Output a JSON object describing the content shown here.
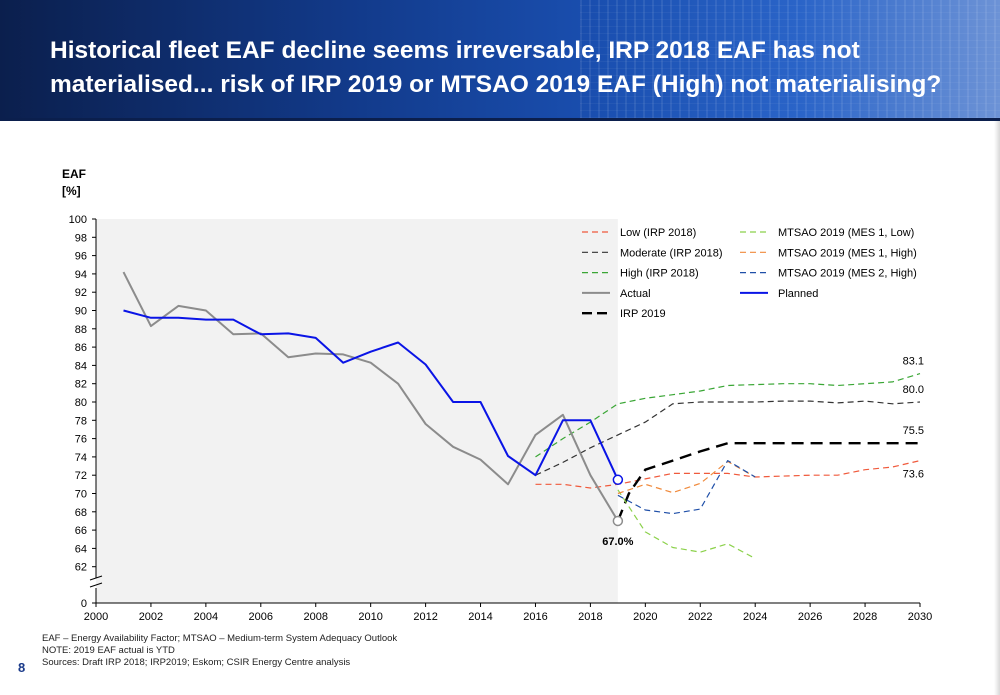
{
  "slide": {
    "title": "Historical fleet EAF decline seems irreversable, IRP 2018 EAF has not materialised... risk of IRP 2019 or MTSAO 2019 EAF (High) not materialising?",
    "page_number": "8",
    "footnotes": [
      "EAF – Energy Availability Factor; MTSAO – Medium-term System Adequacy Outlook",
      "NOTE: 2019 EAF actual is YTD",
      "Sources: Draft IRP 2018; IRP2019; Eskom; CSIR Energy Centre analysis"
    ]
  },
  "chart_data": {
    "type": "line",
    "ylabel_line1": "EAF",
    "ylabel_line2": "[%]",
    "xlim": [
      2000,
      2030
    ],
    "ylim": [
      60,
      100
    ],
    "y_axis_break": true,
    "y_ticks": [
      0,
      62,
      64,
      66,
      68,
      70,
      72,
      74,
      76,
      78,
      80,
      82,
      84,
      86,
      88,
      90,
      92,
      94,
      96,
      98,
      100
    ],
    "x_ticks": [
      2000,
      2002,
      2004,
      2006,
      2008,
      2010,
      2012,
      2014,
      2016,
      2018,
      2020,
      2022,
      2024,
      2026,
      2028,
      2030
    ],
    "historical_shading_to": 2019,
    "legend_position": "top-right",
    "series": [
      {
        "name": "Low (IRP 2018)",
        "color": "#f05a3c",
        "style": "dashed",
        "width": 1.2,
        "x": [
          2016,
          2017,
          2018,
          2019,
          2020,
          2021,
          2022,
          2023,
          2024,
          2025,
          2026,
          2027,
          2028,
          2029,
          2030
        ],
        "y": [
          71.0,
          71.0,
          70.6,
          71.0,
          71.6,
          72.2,
          72.2,
          72.2,
          71.8,
          71.9,
          72.0,
          72.0,
          72.6,
          72.9,
          73.6
        ]
      },
      {
        "name": "Moderate (IRP 2018)",
        "color": "#333333",
        "style": "dashed",
        "width": 1.2,
        "x": [
          2016,
          2017,
          2018,
          2019,
          2020,
          2021,
          2022,
          2023,
          2024,
          2025,
          2026,
          2027,
          2028,
          2029,
          2030
        ],
        "y": [
          72.0,
          73.4,
          75.0,
          76.4,
          77.8,
          79.8,
          80.0,
          80.0,
          80.0,
          80.1,
          80.1,
          79.9,
          80.1,
          79.8,
          80.0
        ]
      },
      {
        "name": "High (IRP 2018)",
        "color": "#3aa635",
        "style": "dashed",
        "width": 1.2,
        "x": [
          2016,
          2017,
          2018,
          2019,
          2020,
          2021,
          2022,
          2023,
          2024,
          2025,
          2026,
          2027,
          2028,
          2029,
          2030
        ],
        "y": [
          74.0,
          76.0,
          77.8,
          79.8,
          80.4,
          80.8,
          81.2,
          81.8,
          81.9,
          82.0,
          82.0,
          81.8,
          82.0,
          82.2,
          83.1
        ]
      },
      {
        "name": "Actual",
        "color": "#8c8c8c",
        "style": "solid",
        "width": 2,
        "x": [
          2001,
          2002,
          2003,
          2004,
          2005,
          2006,
          2007,
          2008,
          2009,
          2010,
          2011,
          2012,
          2013,
          2014,
          2015,
          2016,
          2017,
          2018,
          2019
        ],
        "y": [
          94.2,
          88.3,
          90.5,
          90.0,
          87.4,
          87.5,
          84.9,
          85.3,
          85.2,
          84.3,
          82.0,
          77.6,
          75.1,
          73.7,
          71.0,
          76.4,
          78.6,
          72.0,
          67.0
        ]
      },
      {
        "name": "IRP 2019",
        "color": "#000000",
        "style": "dashed-bold",
        "width": 2.4,
        "x": [
          2019,
          2019.4,
          2020,
          2021,
          2022,
          2023,
          2024,
          2025,
          2026,
          2027,
          2028,
          2029,
          2030
        ],
        "y": [
          67.0,
          70.0,
          72.6,
          73.6,
          74.6,
          75.5,
          75.5,
          75.5,
          75.5,
          75.5,
          75.5,
          75.5,
          75.5
        ]
      },
      {
        "name": "MTSAO 2019 (MES 1, Low)",
        "color": "#8bd14a",
        "style": "dashed",
        "width": 1.2,
        "x": [
          2019,
          2020,
          2021,
          2022,
          2023,
          2024
        ],
        "y": [
          70.4,
          65.8,
          64.1,
          63.6,
          64.5,
          62.9
        ]
      },
      {
        "name": "MTSAO 2019 (MES 1, High)",
        "color": "#f08a3c",
        "style": "dashed",
        "width": 1.2,
        "x": [
          2019,
          2020,
          2021,
          2022,
          2023,
          2024
        ],
        "y": [
          70.0,
          71.0,
          70.1,
          71.1,
          73.5,
          71.8
        ]
      },
      {
        "name": "MTSAO 2019 (MES 2, High)",
        "color": "#1f4fa8",
        "style": "dashed",
        "width": 1.2,
        "x": [
          2019,
          2020,
          2021,
          2022,
          2023,
          2024
        ],
        "y": [
          69.8,
          68.2,
          67.8,
          68.3,
          73.6,
          71.8
        ]
      },
      {
        "name": "Planned",
        "color": "#0a14e6",
        "style": "solid",
        "width": 2,
        "x": [
          2001,
          2002,
          2003,
          2004,
          2005,
          2006,
          2007,
          2008,
          2009,
          2010,
          2011,
          2012,
          2013,
          2014,
          2015,
          2016,
          2017,
          2018,
          2019
        ],
        "y": [
          90.0,
          89.2,
          89.2,
          89.0,
          89.0,
          87.4,
          87.5,
          87.0,
          84.3,
          85.5,
          86.5,
          84.1,
          80.0,
          80.0,
          74.1,
          72.0,
          78.0,
          78.0,
          71.5
        ]
      }
    ],
    "legend_left": [
      "Low (IRP 2018)",
      "Moderate (IRP 2018)",
      "High (IRP 2018)",
      "Actual",
      "IRP 2019"
    ],
    "legend_right": [
      "MTSAO 2019 (MES 1, Low)",
      "MTSAO 2019 (MES 1, High)",
      "MTSAO 2019 (MES 2, High)",
      "Planned"
    ],
    "annotations": [
      {
        "text": "83.1",
        "x": 2030,
        "y": 83.1
      },
      {
        "text": "80.0",
        "x": 2030,
        "y": 80.0
      },
      {
        "text": "75.5",
        "x": 2030,
        "y": 75.5
      },
      {
        "text": "73.6",
        "x": 2030,
        "y": 73.6
      },
      {
        "text": "67.0%",
        "x": 2019,
        "y": 67.0
      }
    ],
    "markers": [
      {
        "x": 2019,
        "y": 67.0,
        "color": "#8c8c8c"
      },
      {
        "x": 2019,
        "y": 71.5,
        "color": "#0a14e6"
      }
    ]
  }
}
